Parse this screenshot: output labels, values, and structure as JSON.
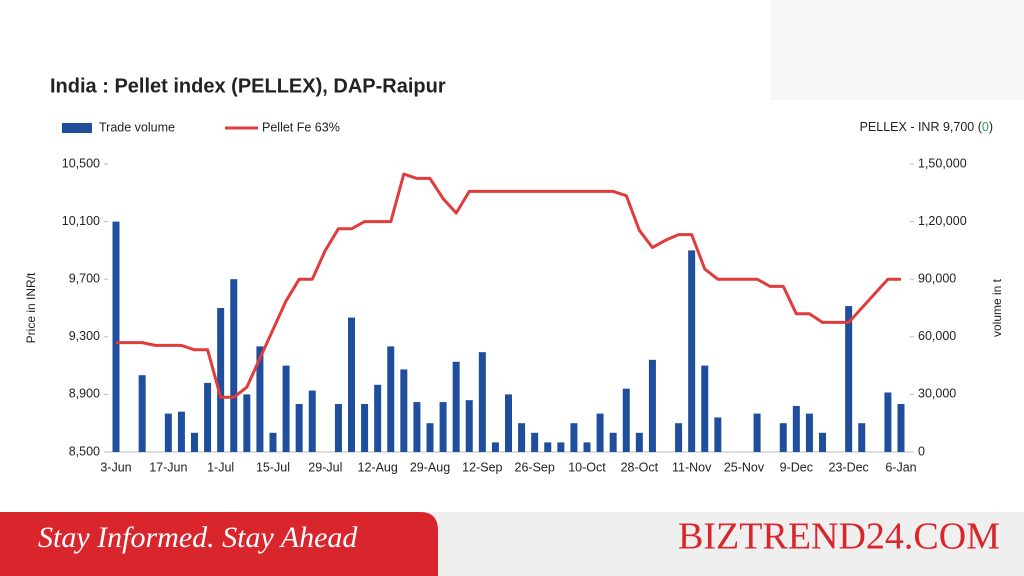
{
  "chart_data": {
    "type": "combo",
    "title": "India : Pellet index (PELLEX), DAP-Raipur",
    "annotation": {
      "prefix": "PELLEX - INR 9,700 (",
      "change": "0",
      "suffix": ")"
    },
    "y_label": "Price in INR/t",
    "y2_label": "volume in t",
    "categories": [
      "3-Jun",
      null,
      null,
      null,
      "17-Jun",
      null,
      null,
      null,
      "1-Jul",
      null,
      null,
      null,
      "15-Jul",
      null,
      null,
      null,
      "29-Jul",
      null,
      null,
      null,
      "12-Aug",
      null,
      null,
      null,
      "29-Aug",
      null,
      null,
      null,
      "12-Sep",
      null,
      null,
      null,
      "26-Sep",
      null,
      null,
      null,
      "10-Oct",
      null,
      null,
      null,
      "28-Oct",
      null,
      null,
      null,
      "11-Nov",
      null,
      null,
      null,
      "25-Nov",
      null,
      null,
      null,
      "9-Dec",
      null,
      null,
      null,
      "23-Dec",
      null,
      null,
      null,
      "6-Jan"
    ],
    "series": [
      {
        "name": "Trade volume",
        "color": "#1f4e9c",
        "kind": "bar",
        "axis": "y2",
        "values": [
          120000,
          null,
          40000,
          null,
          20000,
          21000,
          10000,
          36000,
          75000,
          90000,
          30000,
          55000,
          10000,
          45000,
          25000,
          32000,
          null,
          25000,
          70000,
          25000,
          35000,
          55000,
          43000,
          26000,
          15000,
          26000,
          47000,
          27000,
          52000,
          5000,
          30000,
          15000,
          10000,
          5000,
          5000,
          15000,
          5000,
          20000,
          10000,
          33000,
          10000,
          48000,
          null,
          15000,
          105000,
          45000,
          18000,
          null,
          null,
          20000,
          null,
          15000,
          24000,
          20000,
          10000,
          null,
          76000,
          15000,
          null,
          31000,
          25000
        ]
      },
      {
        "name": "Pellet Fe 63%",
        "color": "#e03c3c",
        "kind": "line",
        "values": [
          9260,
          9260,
          9260,
          9240,
          9240,
          9240,
          9210,
          9210,
          8880,
          8880,
          8950,
          9150,
          9350,
          9550,
          9700,
          9700,
          9900,
          10050,
          10050,
          10100,
          10100,
          10100,
          10430,
          10400,
          10400,
          10260,
          10160,
          10310,
          10310,
          10310,
          10310,
          10310,
          10310,
          10310,
          10310,
          10310,
          10310,
          10310,
          10310,
          10280,
          10040,
          9920,
          9970,
          10010,
          10010,
          9770,
          9700,
          9700,
          9700,
          9700,
          9650,
          9650,
          9460,
          9460,
          9400,
          9400,
          9400,
          9500,
          9600,
          9700,
          9700
        ]
      }
    ],
    "ylim": [
      8500,
      10500
    ],
    "yticks": [
      {
        "value": 8500,
        "label": "8,500"
      },
      {
        "value": 8900,
        "label": "8,900"
      },
      {
        "value": 9300,
        "label": "9,300"
      },
      {
        "value": 9700,
        "label": "9,700"
      },
      {
        "value": 10100,
        "label": "10,100"
      },
      {
        "value": 10500,
        "label": "10,500"
      }
    ],
    "y2lim": [
      0,
      150000
    ],
    "y2ticks": [
      0,
      {
        "value": 30000,
        "label": "30,000"
      },
      {
        "value": 60000,
        "label": "60,000"
      },
      {
        "value": 90000,
        "label": "90,000"
      },
      {
        "value": 120000,
        "label": "1,20,000"
      },
      {
        "value": 150000,
        "label": "1,50,000"
      }
    ],
    "grid": false,
    "legend": "top-left"
  },
  "banner": {
    "tagline": "Stay Informed. Stay Ahead",
    "brand": "BIZTREND24.COM"
  }
}
